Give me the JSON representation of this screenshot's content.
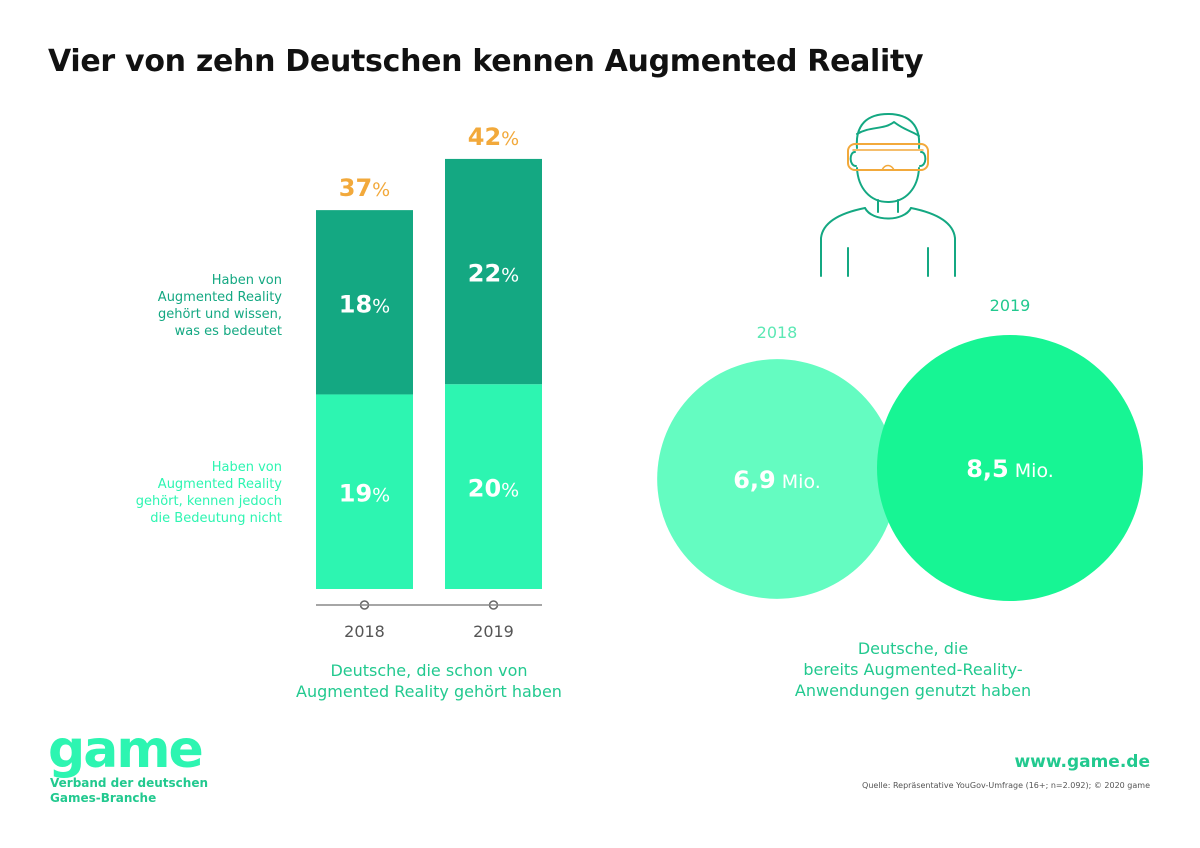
{
  "title": "Vier von zehn Deutschen kennen Augmented Reality",
  "colors": {
    "dark_green": "#14a882",
    "light_green": "#2df5b1",
    "orange": "#f2a93b",
    "text_green": "#22c98f",
    "circle_2018": "#64fcc1",
    "circle_2019": "#17f594",
    "gray": "#555555"
  },
  "labels": {
    "segment_top": [
      "Haben von",
      "Augmented Reality",
      "gehört und wissen,",
      "was es bedeutet"
    ],
    "segment_bottom": [
      "Haben von",
      "Augmented Reality",
      "gehört, kennen jedoch",
      "die Bedeutung nicht"
    ],
    "caption_left": [
      "Deutsche, die schon von",
      "Augmented Reality gehört haben"
    ],
    "caption_right": [
      "Deutsche, die",
      "bereits Augmented-Reality-",
      "Anwendungen genutzt haben"
    ]
  },
  "chart_data": [
    {
      "type": "bar",
      "stacked": true,
      "categories": [
        "2018",
        "2019"
      ],
      "series": [
        {
          "name": "Haben von Augmented Reality gehört, kennen jedoch die Bedeutung nicht",
          "values": [
            19,
            20
          ]
        },
        {
          "name": "Haben von Augmented Reality gehört und wissen, was es bedeutet",
          "values": [
            18,
            22
          ]
        }
      ],
      "totals": [
        37,
        42
      ],
      "unit": "%",
      "ylim": [
        0,
        42
      ]
    },
    {
      "type": "bubble",
      "categories": [
        "2018",
        "2019"
      ],
      "values": [
        6.9,
        8.5
      ],
      "value_labels": [
        "6,9",
        "8,5"
      ],
      "unit": "Mio."
    }
  ],
  "icon": "vr-headset-person-icon",
  "footer": {
    "logo": "game",
    "logo_sub": [
      "Verband der deutschen",
      "Games-Branche"
    ],
    "website": "www.game.de",
    "source": "Quelle: Repräsentative YouGov-Umfrage (16+; n=2.092); © 2020 game"
  }
}
